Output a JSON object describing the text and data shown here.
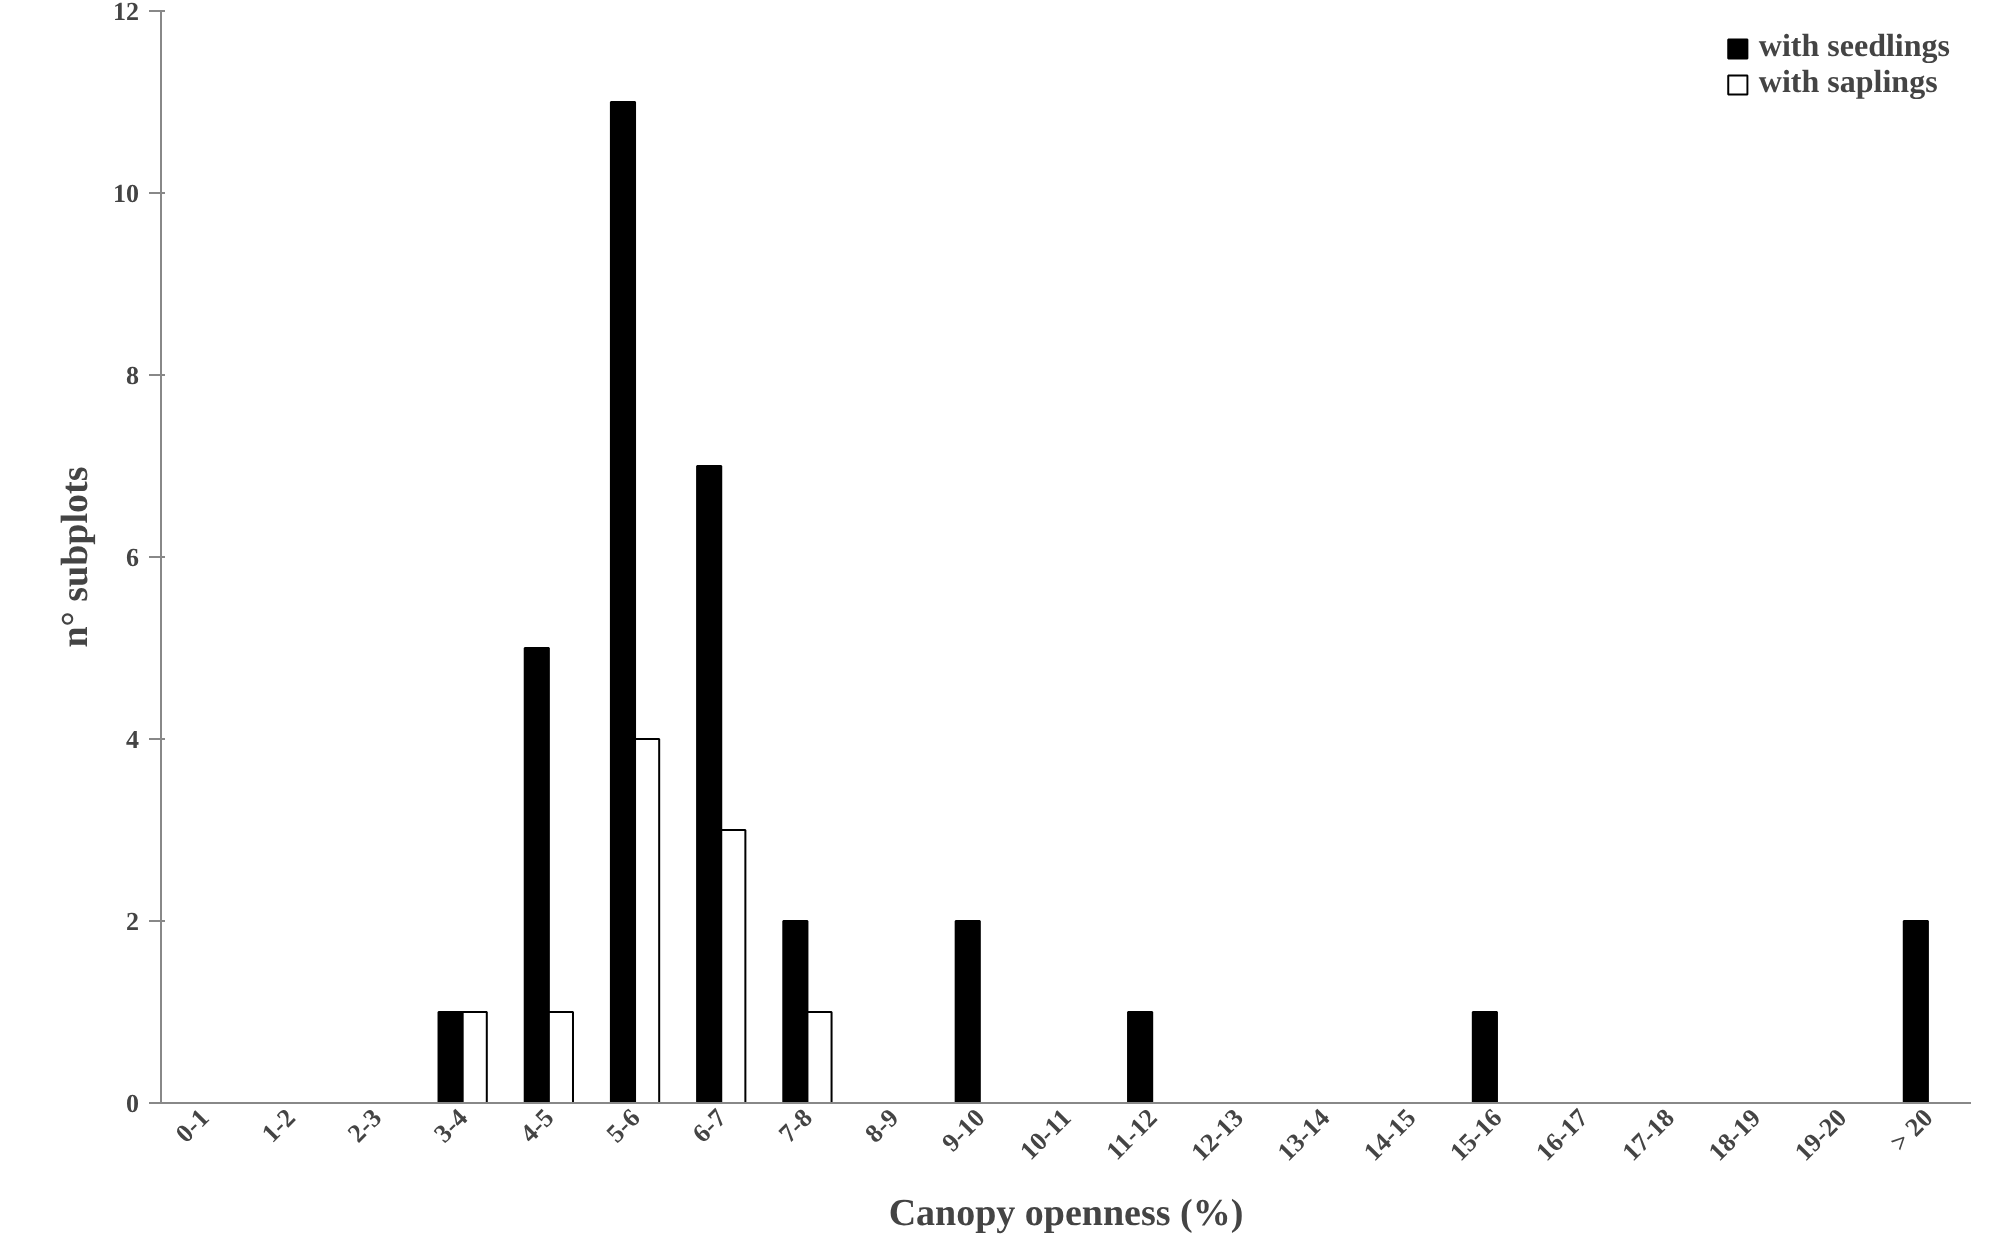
{
  "chart_data": {
    "type": "bar",
    "xlabel": "Canopy openness (%)",
    "ylabel": "n° subplots",
    "categories": [
      "0-1",
      "1-2",
      "2-3",
      "3-4",
      "4-5",
      "5-6",
      "6-7",
      "7-8",
      "8-9",
      "9-10",
      "10-11",
      "11-12",
      "12-13",
      "13-14",
      "14-15",
      "15-16",
      "16-17",
      "17-18",
      "18-19",
      "19-20",
      "> 20"
    ],
    "series": [
      {
        "name": "with seedlings",
        "color": "#000000",
        "values": [
          0,
          0,
          0,
          1,
          5,
          11,
          7,
          2,
          0,
          2,
          0,
          1,
          0,
          0,
          0,
          1,
          0,
          0,
          0,
          0,
          2
        ]
      },
      {
        "name": "with saplings",
        "color": "#ffffff",
        "values": [
          0,
          0,
          0,
          1,
          1,
          4,
          3,
          1,
          0,
          0,
          0,
          0,
          0,
          0,
          0,
          0,
          0,
          0,
          0,
          0,
          0
        ]
      }
    ],
    "ylim": [
      0,
      12
    ],
    "yticks": [
      0,
      2,
      4,
      6,
      8,
      10,
      12
    ],
    "legend": "top right"
  }
}
